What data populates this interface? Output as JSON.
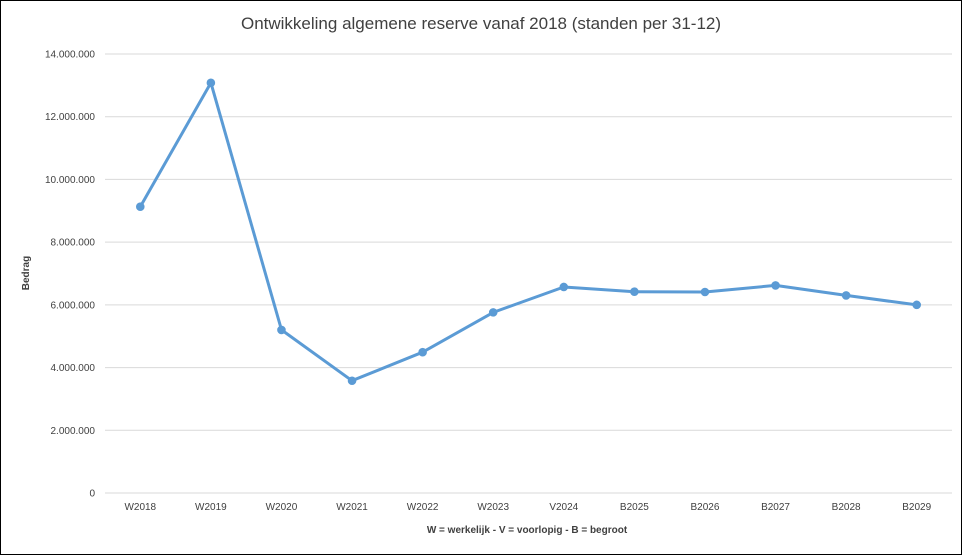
{
  "chart_data": {
    "type": "line",
    "title": "Ontwikkeling algemene reserve vanaf 2018 (standen per 31-12)",
    "xlabel": "W = werkelijk - V = voorlopig - B = begroot",
    "ylabel": "Bedrag",
    "categories": [
      "W2018",
      "W2019",
      "W2020",
      "W2021",
      "W2022",
      "W2023",
      "V2024",
      "B2025",
      "B2026",
      "B2027",
      "B2028",
      "B2029"
    ],
    "series": [
      {
        "name": "",
        "color": "#5b9bd5",
        "values": [
          9130000,
          13080000,
          5200000,
          3580000,
          4490000,
          5760000,
          6570000,
          6420000,
          6410000,
          6620000,
          6300000,
          6000000
        ]
      }
    ],
    "ylim": [
      0,
      14000000
    ],
    "yticks": [
      0,
      2000000,
      4000000,
      6000000,
      8000000,
      10000000,
      12000000,
      14000000
    ],
    "ytick_labels": [
      "0",
      "2.000.000",
      "4.000.000",
      "6.000.000",
      "8.000.000",
      "10.000.000",
      "12.000.000",
      "14.000.000"
    ],
    "grid": true,
    "legend": "none"
  }
}
